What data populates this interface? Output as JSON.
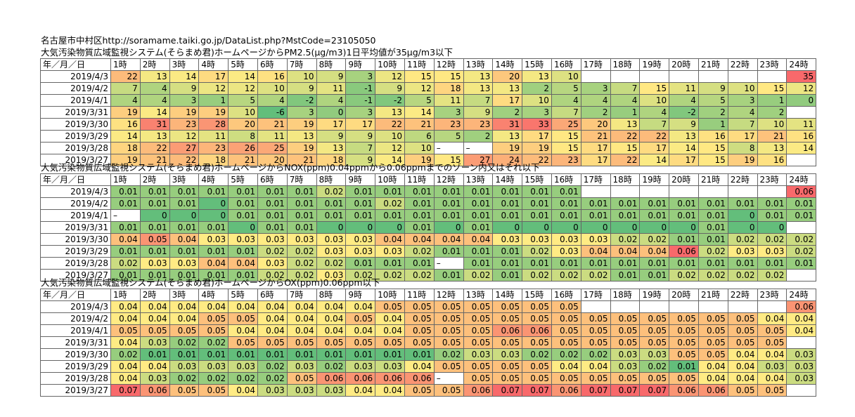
{
  "header_line": "名古屋市中村区http://soramame.taiki.go.jp/DataList.php?MstCode=23105050",
  "hours": [
    "1時",
    "2時",
    "3時",
    "4時",
    "5時",
    "6時",
    "7時",
    "8時",
    "9時",
    "10時",
    "11時",
    "12時",
    "13時",
    "14時",
    "15時",
    "16時",
    "17時",
    "18時",
    "19時",
    "20時",
    "21時",
    "22時",
    "23時",
    "24時"
  ],
  "date_header": "年／月／日",
  "colors": {
    "low": "#63be7b",
    "mid": "#ffeb84",
    "high": "#f8696b"
  },
  "sections": [
    {
      "title": "大気汚染物質広域監視システム(そらまめ君)ホームページからPM2.5(μg/m3)1日平均値が35μg/m3以下",
      "rows": [
        {
          "date": "2019/4/3",
          "values": [
            "22",
            "13",
            "14",
            "17",
            "14",
            "16",
            "10",
            "9",
            "3",
            "12",
            "15",
            "15",
            "13",
            "20",
            "13",
            "10",
            "",
            "",
            "",
            "",
            "",
            "",
            "",
            "35"
          ]
        },
        {
          "date": "2019/4/2",
          "values": [
            "7",
            "4",
            "9",
            "12",
            "12",
            "10",
            "9",
            "11",
            "-1",
            "9",
            "12",
            "18",
            "13",
            "13",
            "2",
            "5",
            "3",
            "7",
            "15",
            "11",
            "9",
            "10",
            "15",
            "12"
          ]
        },
        {
          "date": "2019/4/1",
          "values": [
            "4",
            "4",
            "3",
            "1",
            "5",
            "4",
            "-2",
            "4",
            "-1",
            "-2",
            "5",
            "11",
            "7",
            "17",
            "10",
            "4",
            "4",
            "4",
            "10",
            "4",
            "5",
            "3",
            "1",
            "0"
          ]
        },
        {
          "date": "2019/3/31",
          "values": [
            "19",
            "14",
            "19",
            "19",
            "10",
            "-6",
            "3",
            "0",
            "3",
            "13",
            "14",
            "3",
            "9",
            "2",
            "3",
            "7",
            "2",
            "1",
            "4",
            "-2",
            "2",
            "4",
            "2",
            ""
          ]
        },
        {
          "date": "2019/3/30",
          "values": [
            "16",
            "31",
            "23",
            "28",
            "20",
            "21",
            "19",
            "17",
            "17",
            "22",
            "21",
            "23",
            "23",
            "31",
            "33",
            "25",
            "20",
            "13",
            "7",
            "9",
            "1",
            "7",
            "10",
            "11"
          ]
        },
        {
          "date": "2019/3/29",
          "values": [
            "14",
            "13",
            "12",
            "11",
            "8",
            "11",
            "13",
            "9",
            "9",
            "10",
            "6",
            "5",
            "2",
            "13",
            "17",
            "15",
            "21",
            "22",
            "22",
            "13",
            "16",
            "17",
            "21",
            "16"
          ]
        },
        {
          "date": "2019/3/28",
          "values": [
            "18",
            "22",
            "27",
            "23",
            "26",
            "25",
            "19",
            "13",
            "7",
            "12",
            "10",
            "–",
            "–",
            "19",
            "19",
            "15",
            "17",
            "15",
            "17",
            "14",
            "15",
            "8",
            "13",
            "14"
          ]
        },
        {
          "date": "2019/3/27",
          "values": [
            "19",
            "21",
            "22",
            "18",
            "21",
            "20",
            "21",
            "18",
            "9",
            "14",
            "19",
            "15",
            "27",
            "24",
            "22",
            "23",
            "17",
            "22",
            "14",
            "17",
            "15",
            "19",
            "16",
            ""
          ]
        }
      ]
    },
    {
      "title": "大気汚染物質広域監視システム(そらまめ君)ホームページからNOX(ppm)0.04ppmから0.06ppmまでのゾーン内又はそれ以下",
      "rows": [
        {
          "date": "2019/4/3",
          "values": [
            "0.01",
            "0.01",
            "0.01",
            "0.01",
            "0.01",
            "0.01",
            "0.01",
            "0.02",
            "0.01",
            "0.01",
            "0.01",
            "0.01",
            "0.01",
            "0.01",
            "0.01",
            "0.01",
            "",
            "",
            "",
            "",
            "",
            "",
            "",
            "0.06"
          ]
        },
        {
          "date": "2019/4/2",
          "values": [
            "0.01",
            "0.01",
            "0.01",
            "0",
            "0.01",
            "0.01",
            "0.01",
            "0.01",
            "0.01",
            "0.02",
            "0.01",
            "0.01",
            "0.01",
            "0.01",
            "0.01",
            "0.01",
            "0.01",
            "0.01",
            "0.01",
            "0.01",
            "0.01",
            "0.01",
            "0.01",
            "0.01"
          ]
        },
        {
          "date": "2019/4/1",
          "values": [
            "–",
            "0",
            "0",
            "0",
            "0.01",
            "0.01",
            "0.01",
            "0.01",
            "0.01",
            "0.01",
            "0.01",
            "0.01",
            "0.01",
            "0.01",
            "0.01",
            "0.01",
            "0.01",
            "0.01",
            "0.01",
            "0.01",
            "0.01",
            "0",
            "0.01",
            "0.01"
          ]
        },
        {
          "date": "2019/3/31",
          "values": [
            "0.01",
            "0.01",
            "0.01",
            "0.01",
            "0",
            "0.01",
            "0.01",
            "0",
            "0",
            "0",
            "0.01",
            "0",
            "0.01",
            "0",
            "0",
            "0",
            "0",
            "0",
            "0",
            "0",
            "0.01",
            "0",
            "0",
            ""
          ]
        },
        {
          "date": "2019/3/30",
          "values": [
            "0.04",
            "0.05",
            "0.04",
            "0.03",
            "0.03",
            "0.03",
            "0.03",
            "0.03",
            "0.03",
            "0.04",
            "0.04",
            "0.04",
            "0.04",
            "0.03",
            "0.03",
            "0.03",
            "0.03",
            "0.02",
            "0.02",
            "0.01",
            "0.01",
            "0.02",
            "0.02",
            "0.02"
          ]
        },
        {
          "date": "2019/3/29",
          "values": [
            "0.01",
            "0.01",
            "0.01",
            "0.01",
            "0.01",
            "0.02",
            "0.02",
            "0.03",
            "0.03",
            "0.03",
            "0.02",
            "0.01",
            "0.01",
            "0.01",
            "0.02",
            "0.03",
            "0.04",
            "0.04",
            "0.04",
            "0.06",
            "0.02",
            "0.03",
            "0.03",
            "0.02"
          ]
        },
        {
          "date": "2019/3/28",
          "values": [
            "0.02",
            "0.03",
            "0.03",
            "0.04",
            "0.04",
            "0.03",
            "0.02",
            "0.02",
            "0.01",
            "0.01",
            "0.01",
            "–",
            "0.01",
            "0.01",
            "0.01",
            "0.01",
            "0.01",
            "0.01",
            "0.01",
            "0.01",
            "0.01",
            "0.01",
            "0.01",
            "0.01"
          ]
        },
        {
          "date": "2019/3/27",
          "values": [
            "0.01",
            "0.01",
            "0.01",
            "0.01",
            "0.01",
            "0.02",
            "0.02",
            "0.03",
            "0.02",
            "0.02",
            "0.02",
            "0.01",
            "0.02",
            "0.01",
            "0.02",
            "0.02",
            "0.02",
            "0.01",
            "0.01",
            "0.02",
            "0.02",
            "0.02",
            "0.02",
            ""
          ]
        }
      ]
    },
    {
      "title": "大気汚染物質広域監視システム(そらまめ君)ホームページからOX(ppm)0.06ppm以下",
      "rows": [
        {
          "date": "2019/4/3",
          "values": [
            "0.04",
            "0.04",
            "0.04",
            "0.04",
            "0.04",
            "0.04",
            "0.04",
            "0.04",
            "0.04",
            "0.05",
            "0.05",
            "0.05",
            "0.05",
            "0.05",
            "0.05",
            "0.05",
            "",
            "",
            "",
            "",
            "",
            "",
            "",
            "0.06"
          ]
        },
        {
          "date": "2019/4/2",
          "values": [
            "0.04",
            "0.04",
            "0.04",
            "0.05",
            "0.05",
            "0.04",
            "0.04",
            "0.04",
            "0.05",
            "0.04",
            "0.05",
            "0.05",
            "0.05",
            "0.05",
            "0.05",
            "0.05",
            "0.05",
            "0.05",
            "0.05",
            "0.05",
            "0.05",
            "0.05",
            "0.04",
            "0.04"
          ]
        },
        {
          "date": "2019/4/1",
          "values": [
            "0.05",
            "0.05",
            "0.05",
            "0.05",
            "0.04",
            "0.04",
            "0.04",
            "0.04",
            "0.04",
            "0.04",
            "0.05",
            "0.05",
            "0.05",
            "0.06",
            "0.06",
            "0.05",
            "0.05",
            "0.05",
            "0.05",
            "0.05",
            "0.05",
            "0.05",
            "0.05",
            "0.04"
          ]
        },
        {
          "date": "2019/3/31",
          "values": [
            "0.04",
            "0.03",
            "0.02",
            "0.02",
            "0.05",
            "0.05",
            "0.05",
            "0.05",
            "0.05",
            "0.05",
            "0.05",
            "0.05",
            "0.05",
            "0.05",
            "0.05",
            "0.05",
            "0.05",
            "0.05",
            "0.05",
            "0.05",
            "0.05",
            "0.05",
            "0.05",
            ""
          ]
        },
        {
          "date": "2019/3/30",
          "values": [
            "0.02",
            "0.01",
            "0.01",
            "0.01",
            "0.01",
            "0.01",
            "0.01",
            "0.01",
            "0.01",
            "0.01",
            "0.01",
            "0.02",
            "0.03",
            "0.03",
            "0.02",
            "0.02",
            "0.02",
            "0.03",
            "0.03",
            "0.05",
            "0.05",
            "0.04",
            "0.04",
            "0.03"
          ]
        },
        {
          "date": "2019/3/29",
          "values": [
            "0.04",
            "0.04",
            "0.03",
            "0.03",
            "0.03",
            "0.02",
            "0.03",
            "0.02",
            "0.03",
            "0.03",
            "0.04",
            "0.05",
            "0.05",
            "0.05",
            "0.05",
            "0.04",
            "0.04",
            "0.03",
            "0.02",
            "0.01",
            "0.04",
            "0.04",
            "0.03",
            "0.03"
          ]
        },
        {
          "date": "2019/3/28",
          "values": [
            "0.04",
            "0.03",
            "0.02",
            "0.02",
            "0.02",
            "0.02",
            "0.05",
            "0.06",
            "0.06",
            "0.06",
            "0.06",
            "–",
            "0.05",
            "0.05",
            "0.05",
            "0.05",
            "0.05",
            "0.05",
            "0.05",
            "0.05",
            "0.04",
            "0.04",
            "0.04",
            "0.03"
          ]
        },
        {
          "date": "2019/3/27",
          "values": [
            "0.07",
            "0.06",
            "0.05",
            "0.05",
            "0.04",
            "0.03",
            "0.03",
            "0.03",
            "0.04",
            "0.04",
            "0.05",
            "0.05",
            "0.06",
            "0.07",
            "0.07",
            "0.06",
            "0.07",
            "0.07",
            "0.07",
            "0.06",
            "0.06",
            "0.05",
            "0.05",
            ""
          ]
        }
      ]
    }
  ]
}
